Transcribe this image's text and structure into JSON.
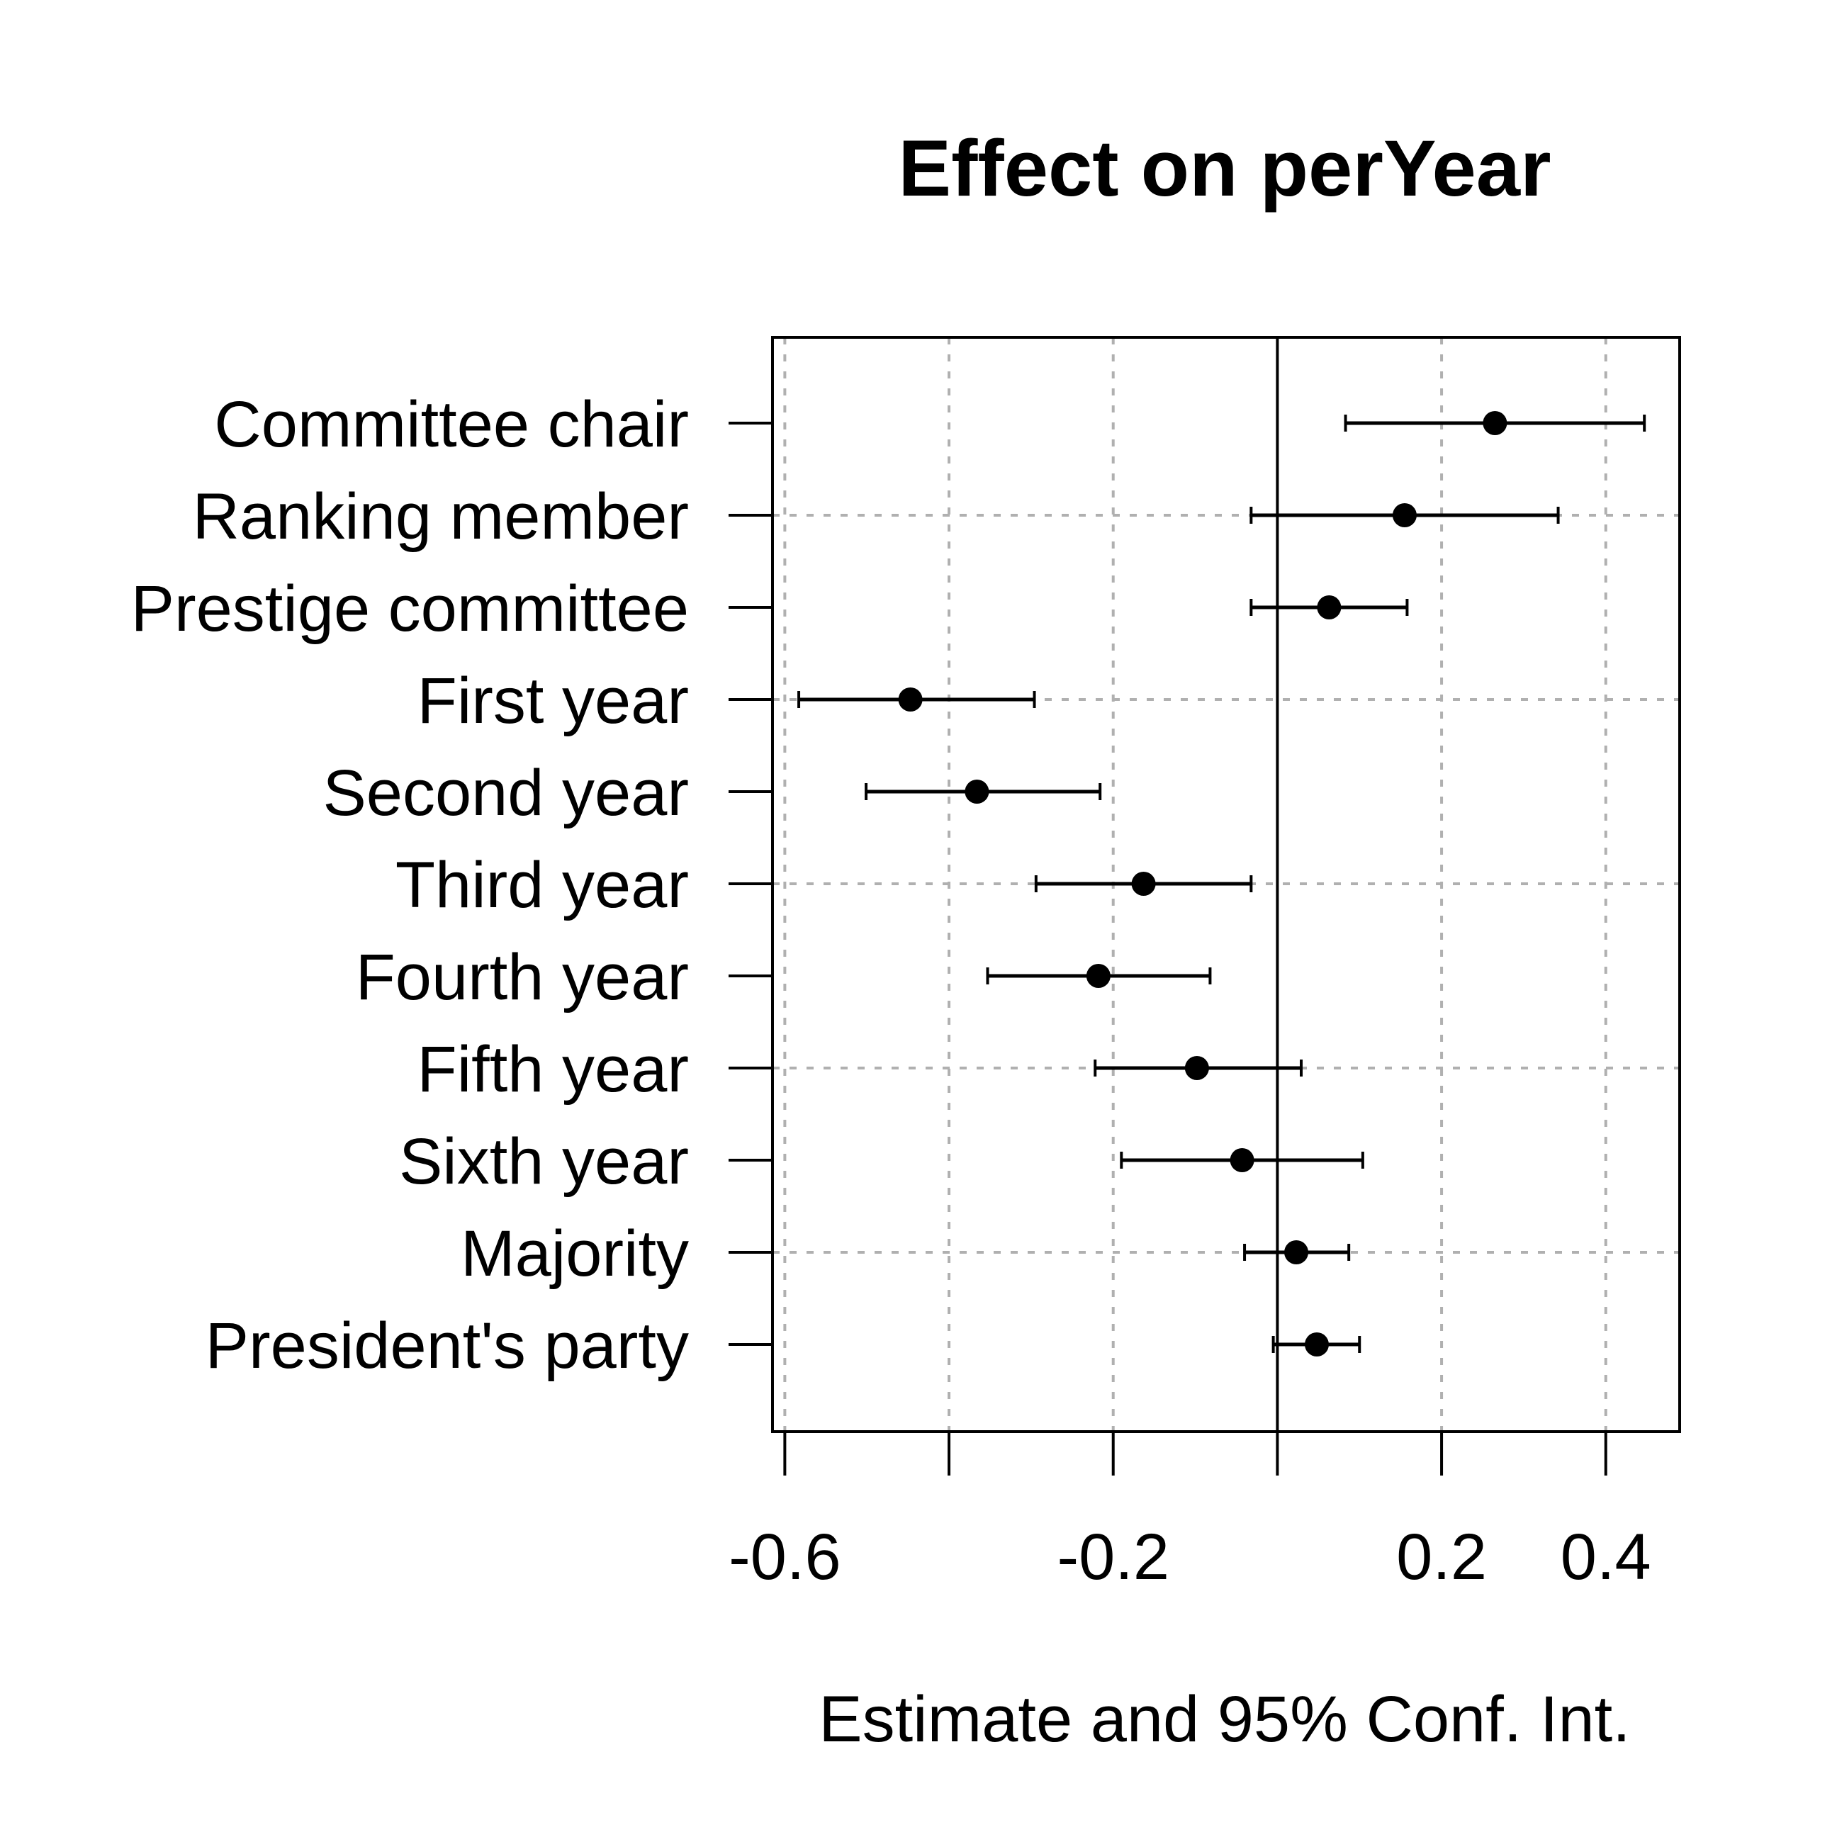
{
  "chart_data": {
    "type": "scatter",
    "subtype": "coefficient-plot",
    "title": "Effect on perYear",
    "xlabel": "Estimate and 95% Conf. Int.",
    "ylabel": "",
    "xlim": [
      -0.615,
      0.49
    ],
    "reference_line_x": 0,
    "grid": true,
    "x_grid_values": [
      -0.6,
      -0.4,
      -0.2,
      0.0,
      0.2,
      0.4
    ],
    "x_tick_values": [
      -0.6,
      -0.4,
      -0.2,
      0.0,
      0.2,
      0.4
    ],
    "x_tick_labels": [
      "-0.6",
      "",
      "-0.2",
      "",
      "0.2",
      "0.4"
    ],
    "categories": [
      "Committee chair",
      "Ranking member",
      "Prestige committee",
      "First year",
      "Second year",
      "Third year",
      "Fourth year",
      "Fifth year",
      "Sixth year",
      "Majority",
      "President's party"
    ],
    "series": [
      {
        "estimate": [
          0.265,
          0.155,
          0.063,
          -0.447,
          -0.366,
          -0.163,
          -0.218,
          -0.098,
          -0.043,
          0.023,
          0.048
        ],
        "lower": [
          0.083,
          -0.032,
          -0.032,
          -0.583,
          -0.501,
          -0.294,
          -0.353,
          -0.222,
          -0.19,
          -0.04,
          -0.005
        ],
        "upper": [
          0.447,
          0.342,
          0.158,
          -0.296,
          -0.216,
          -0.032,
          -0.082,
          0.029,
          0.104,
          0.087,
          0.1
        ]
      }
    ],
    "colors": {
      "points": "#000000",
      "grid": "#b0b0b0",
      "axes": "#000000"
    }
  }
}
